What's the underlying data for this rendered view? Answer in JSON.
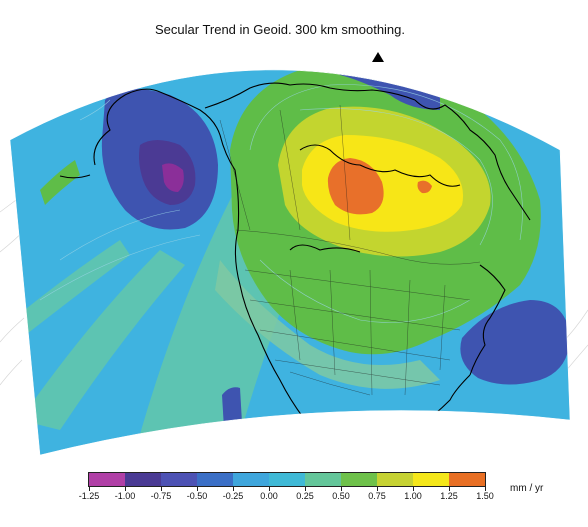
{
  "title": "Secular Trend in Geoid. 300 km smoothing.",
  "colorbar": {
    "ticks": [
      "-1.25",
      "-1.00",
      "-0.75",
      "-0.50",
      "-0.25",
      "0.00",
      "0.25",
      "0.50",
      "0.75",
      "1.00",
      "1.25",
      "1.50"
    ],
    "colors": [
      "#b03fa6",
      "#4a3a94",
      "#4d52b4",
      "#3b6fc6",
      "#3fa6dc",
      "#3fb9d6",
      "#64c69a",
      "#6ec14a",
      "#c6d233",
      "#f5e71a",
      "#e86f24"
    ],
    "units": "mm / yr"
  },
  "map": {
    "projection": "conic",
    "colors": {
      "background": "#3fb3e0",
      "zero": "#5dc4b2",
      "green": "#5fbd48",
      "yellow_green": "#c3d52f",
      "yellow": "#f7e617",
      "orange": "#e8702a",
      "blue": "#3e54b0",
      "dark_blue": "#4b3a94",
      "purple": "#8b2f99",
      "magenta": "#c23fa9",
      "coast": "#000000",
      "border": "#1a1a1a",
      "contour": "#9ad4e6"
    }
  }
}
